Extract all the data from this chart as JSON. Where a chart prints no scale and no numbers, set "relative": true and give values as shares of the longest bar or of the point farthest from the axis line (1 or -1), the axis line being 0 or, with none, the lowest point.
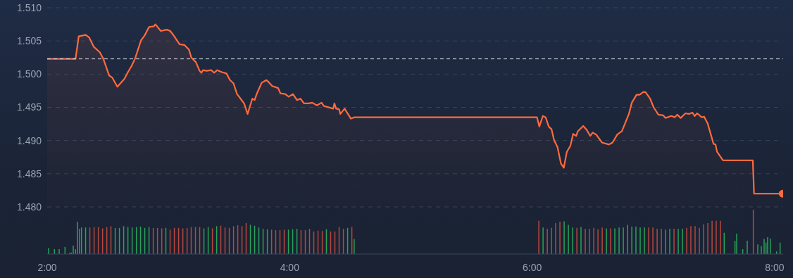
{
  "chart_data": [
    {
      "type": "area",
      "xlim": [
        2,
        8.07
      ],
      "ylim": [
        1.48,
        1.51
      ],
      "yticks": [
        {
          "value": 1.48,
          "label": "1.480"
        },
        {
          "value": 1.485,
          "label": "1.485"
        },
        {
          "value": 1.49,
          "label": "1.490"
        },
        {
          "value": 1.495,
          "label": "1.495"
        },
        {
          "value": 1.5,
          "label": "1.500"
        },
        {
          "value": 1.505,
          "label": "1.505"
        },
        {
          "value": 1.51,
          "label": "1.510"
        }
      ],
      "tick_labels": "y",
      "grid": "y",
      "legend": false,
      "ref_lines": [
        {
          "axis": "y",
          "value": 1.5023,
          "color": "#d6dae2",
          "line_style": "dashed"
        }
      ],
      "series": [
        {
          "color": "#ff6a3d",
          "x": [
            2.0,
            2.234,
            2.26,
            2.318,
            2.347,
            2.385,
            2.434,
            2.463,
            2.511,
            2.536,
            2.579,
            2.637,
            2.666,
            2.695,
            2.724,
            2.774,
            2.803,
            2.84,
            2.879,
            2.893,
            2.937,
            2.986,
            3.015,
            3.044,
            3.092,
            3.131,
            3.169,
            3.189,
            3.227,
            3.257,
            3.272,
            3.286,
            3.315,
            3.353,
            3.377,
            3.402,
            3.441,
            3.479,
            3.508,
            3.537,
            3.566,
            3.595,
            3.624,
            3.653,
            3.692,
            3.711,
            3.73,
            3.769,
            3.808,
            3.827,
            3.856,
            3.905,
            3.924,
            3.963,
            3.992,
            4.027,
            4.06,
            4.089,
            4.118,
            4.157,
            4.186,
            4.224,
            4.263,
            4.282,
            4.359,
            4.369,
            4.383,
            4.408,
            4.418,
            4.453,
            4.505,
            4.534,
            6.04,
            6.059,
            6.088,
            6.111,
            6.137,
            6.16,
            6.18,
            6.209,
            6.238,
            6.261,
            6.286,
            6.315,
            6.338,
            6.363,
            6.377,
            6.421,
            6.45,
            6.479,
            6.499,
            6.528,
            6.576,
            6.634,
            6.663,
            6.702,
            6.74,
            6.769,
            6.798,
            6.822,
            6.861,
            6.886,
            6.915,
            6.935,
            6.973,
            7.002,
            7.041,
            7.08,
            7.099,
            7.148,
            7.177,
            7.196,
            7.225,
            7.264,
            7.293,
            7.322,
            7.341,
            7.361,
            7.399,
            7.418,
            7.447,
            7.496,
            7.512,
            7.525,
            7.574,
            7.82,
            7.83,
            8.066
          ],
          "values": [
            1.5023,
            1.5023,
            1.5057,
            1.5059,
            1.5055,
            1.5041,
            1.5033,
            1.5023,
            1.4998,
            1.4995,
            1.4981,
            1.4993,
            1.5003,
            1.5012,
            1.5023,
            1.5051,
            1.5058,
            1.5071,
            1.5072,
            1.5075,
            1.5065,
            1.5067,
            1.5065,
            1.5058,
            1.5045,
            1.5044,
            1.5037,
            1.5025,
            1.5018,
            1.5005,
            1.5002,
            1.5006,
            1.5005,
            1.5006,
            1.5002,
            1.5006,
            1.5003,
            1.5001,
            1.4991,
            1.4986,
            1.497,
            1.4963,
            1.4956,
            1.494,
            1.4963,
            1.4961,
            1.4971,
            1.4987,
            1.4991,
            1.4988,
            1.4982,
            1.4979,
            1.4971,
            1.497,
            1.4966,
            1.497,
            1.4961,
            1.4963,
            1.4956,
            1.4956,
            1.4957,
            1.4953,
            1.4957,
            1.4952,
            1.4948,
            1.4956,
            1.4948,
            1.4947,
            1.494,
            1.4948,
            1.4933,
            1.4935,
            1.4935,
            1.4921,
            1.4937,
            1.4935,
            1.4921,
            1.4917,
            1.4901,
            1.489,
            1.4865,
            1.4859,
            1.4883,
            1.4892,
            1.491,
            1.4907,
            1.4914,
            1.4922,
            1.4916,
            1.4907,
            1.4912,
            1.4909,
            1.4897,
            1.4894,
            1.4897,
            1.4909,
            1.4914,
            1.4927,
            1.494,
            1.4957,
            1.4969,
            1.4969,
            1.4973,
            1.4973,
            1.4963,
            1.495,
            1.4939,
            1.4938,
            1.4934,
            1.4937,
            1.4935,
            1.4939,
            1.4934,
            1.4941,
            1.494,
            1.4942,
            1.4937,
            1.4941,
            1.4935,
            1.4936,
            1.4926,
            1.4895,
            1.4894,
            1.4883,
            1.487,
            1.487,
            1.482,
            1.482
          ]
        }
      ]
    },
    {
      "type": "bar",
      "relative": true,
      "xlim": [
        2,
        8.07
      ],
      "xticks": [
        {
          "value": 2,
          "label": "2:00"
        },
        {
          "value": 4,
          "label": "4:00"
        },
        {
          "value": 6,
          "label": "6:00"
        },
        {
          "value": 8,
          "label": "8:00"
        }
      ],
      "tick_labels": "x",
      "grid": false,
      "legend": false,
      "series": [
        {
          "color": "#27a359",
          "x": [
            2.014,
            2.062,
            2.101,
            2.149,
            2.188,
            2.201,
            2.217,
            2.236,
            2.252,
            2.269,
            2.285,
            2.319,
            2.563,
            2.598,
            2.633,
            2.668,
            2.703,
            2.738,
            2.772,
            2.807,
            2.842,
            2.981,
            3.295,
            3.33,
            3.4,
            3.678,
            3.713,
            3.748,
            3.783,
            3.818,
            3.992,
            4.027,
            4.062,
            4.305,
            4.48,
            4.534,
            6.092,
            6.266,
            6.301,
            6.336,
            6.405,
            6.615,
            6.684,
            6.719,
            6.754,
            6.789,
            6.824,
            6.858,
            6.893,
            6.928,
            7.102,
            7.137,
            7.207,
            7.242,
            7.586,
            7.675,
            7.689,
            7.739,
            7.776,
            7.863,
            7.892,
            7.915,
            7.931,
            7.944,
            7.966,
            8.018,
            8.047
          ],
          "values": [
            0.14,
            0.11,
            0.11,
            0.16,
            0.03,
            0.03,
            0.19,
            0.11,
            0.73,
            0.57,
            0.6,
            0.6,
            0.59,
            0.59,
            0.63,
            0.61,
            0.6,
            0.61,
            0.62,
            0.59,
            0.61,
            0.59,
            0.58,
            0.61,
            0.63,
            0.66,
            0.64,
            0.6,
            0.57,
            0.56,
            0.55,
            0.56,
            0.57,
            0.56,
            0.59,
            0.34,
            0.6,
            0.74,
            0.66,
            0.6,
            0.61,
            0.58,
            0.58,
            0.6,
            0.6,
            0.66,
            0.62,
            0.62,
            0.6,
            0.6,
            0.55,
            0.57,
            0.57,
            0.57,
            0.48,
            0.3,
            0.46,
            0.11,
            0.3,
            0.22,
            0.18,
            0.34,
            0.26,
            0.38,
            0.35,
            0.06,
            0.26
          ]
        },
        {
          "color": "#b8473c",
          "x": [
            2.354,
            2.389,
            2.424,
            2.459,
            2.494,
            2.528,
            2.877,
            2.912,
            2.947,
            3.016,
            3.051,
            3.086,
            3.121,
            3.156,
            3.19,
            3.225,
            3.26,
            3.365,
            3.434,
            3.469,
            3.504,
            3.539,
            3.574,
            3.609,
            3.643,
            3.853,
            3.887,
            3.922,
            3.957,
            4.096,
            4.131,
            4.166,
            4.201,
            4.236,
            4.271,
            4.34,
            4.375,
            4.41,
            4.445,
            4.515,
            6.057,
            6.127,
            6.162,
            6.196,
            6.231,
            6.371,
            6.44,
            6.475,
            6.51,
            6.545,
            6.58,
            6.649,
            6.963,
            6.998,
            7.033,
            7.068,
            7.172,
            7.277,
            7.311,
            7.346,
            7.381,
            7.416,
            7.451,
            7.486,
            7.52,
            7.555,
            7.826
          ],
          "values": [
            0.6,
            0.61,
            0.61,
            0.58,
            0.61,
            0.63,
            0.59,
            0.59,
            0.58,
            0.55,
            0.59,
            0.59,
            0.58,
            0.59,
            0.61,
            0.61,
            0.61,
            0.58,
            0.64,
            0.6,
            0.59,
            0.63,
            0.65,
            0.63,
            0.7,
            0.55,
            0.54,
            0.54,
            0.55,
            0.54,
            0.54,
            0.57,
            0.51,
            0.53,
            0.52,
            0.51,
            0.51,
            0.61,
            0.57,
            0.61,
            0.75,
            0.57,
            0.59,
            0.7,
            0.73,
            0.59,
            0.57,
            0.57,
            0.59,
            0.56,
            0.6,
            0.58,
            0.6,
            0.6,
            0.57,
            0.57,
            0.57,
            0.59,
            0.63,
            0.63,
            0.59,
            0.67,
            0.7,
            0.75,
            0.75,
            0.75,
            1
          ]
        }
      ]
    }
  ]
}
